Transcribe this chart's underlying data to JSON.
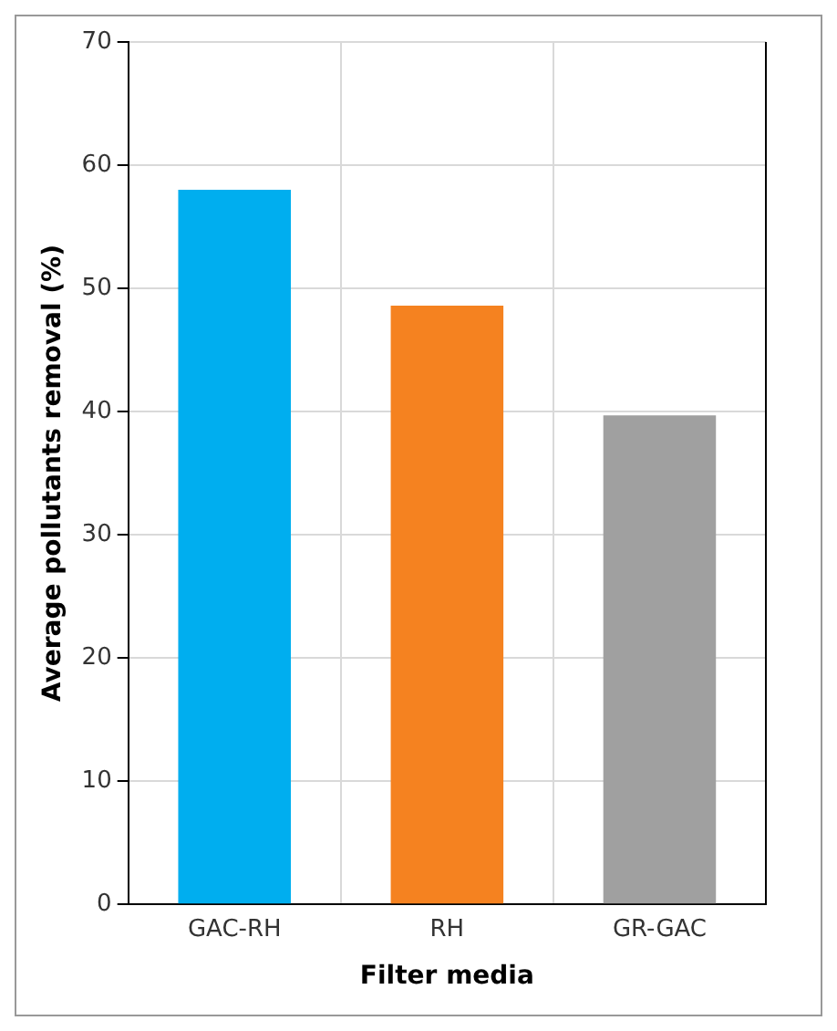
{
  "chart_data": {
    "type": "bar",
    "xlabel": "Filter media",
    "ylabel": "Average pollutants removal (%)",
    "categories": [
      "GAC-RH",
      "RH",
      "GR-GAC"
    ],
    "values": [
      58,
      48.6,
      39.7
    ],
    "colors": [
      "#00aeef",
      "#f58220",
      "#a0a0a0"
    ],
    "ylim": [
      0,
      70
    ],
    "yticks": [
      0,
      10,
      20,
      30,
      40,
      50,
      60,
      70
    ],
    "grid": true
  }
}
